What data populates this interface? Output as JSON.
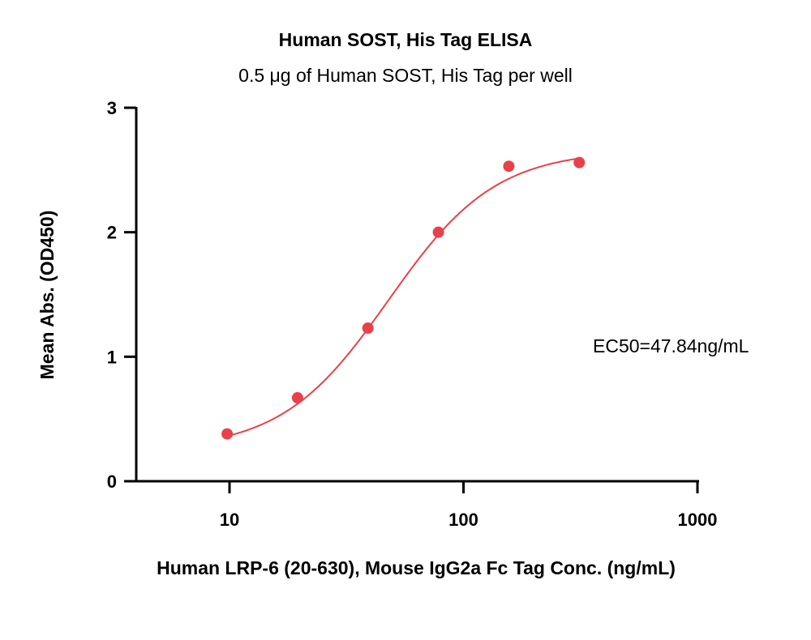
{
  "chart_data": {
    "type": "scatter",
    "title": "Human SOST, His Tag ELISA",
    "subtitle": "0.5 μg of Human SOST, His Tag per well",
    "xlabel": "Human LRP-6 (20-630), Mouse IgG2a Fc Tag Conc. (ng/mL)",
    "ylabel": "Mean Abs. (OD450)",
    "x_scale": "log",
    "xlim": [
      4,
      1000
    ],
    "ylim": [
      0,
      3
    ],
    "x_ticks": [
      10,
      100,
      1000
    ],
    "x_tick_labels": [
      "10",
      "100",
      "1000"
    ],
    "y_ticks": [
      0,
      1,
      2,
      3
    ],
    "y_tick_labels": [
      "0",
      "1",
      "2",
      "3"
    ],
    "grid": false,
    "colors": {
      "series": "#e8414a",
      "axis": "#000000"
    },
    "series": [
      {
        "x": [
          9.77,
          19.53,
          39.06,
          78.13,
          156.25,
          312.5
        ],
        "y": [
          0.38,
          0.67,
          1.23,
          2.0,
          2.53,
          2.56
        ]
      }
    ],
    "fit_curve": {
      "model": "4PL",
      "bottom": 0.25,
      "top": 2.66,
      "ec50": 47.84,
      "hill": 1.9,
      "x_range": [
        9.77,
        312.5
      ]
    },
    "annotation": "EC50=47.84ng/mL"
  }
}
